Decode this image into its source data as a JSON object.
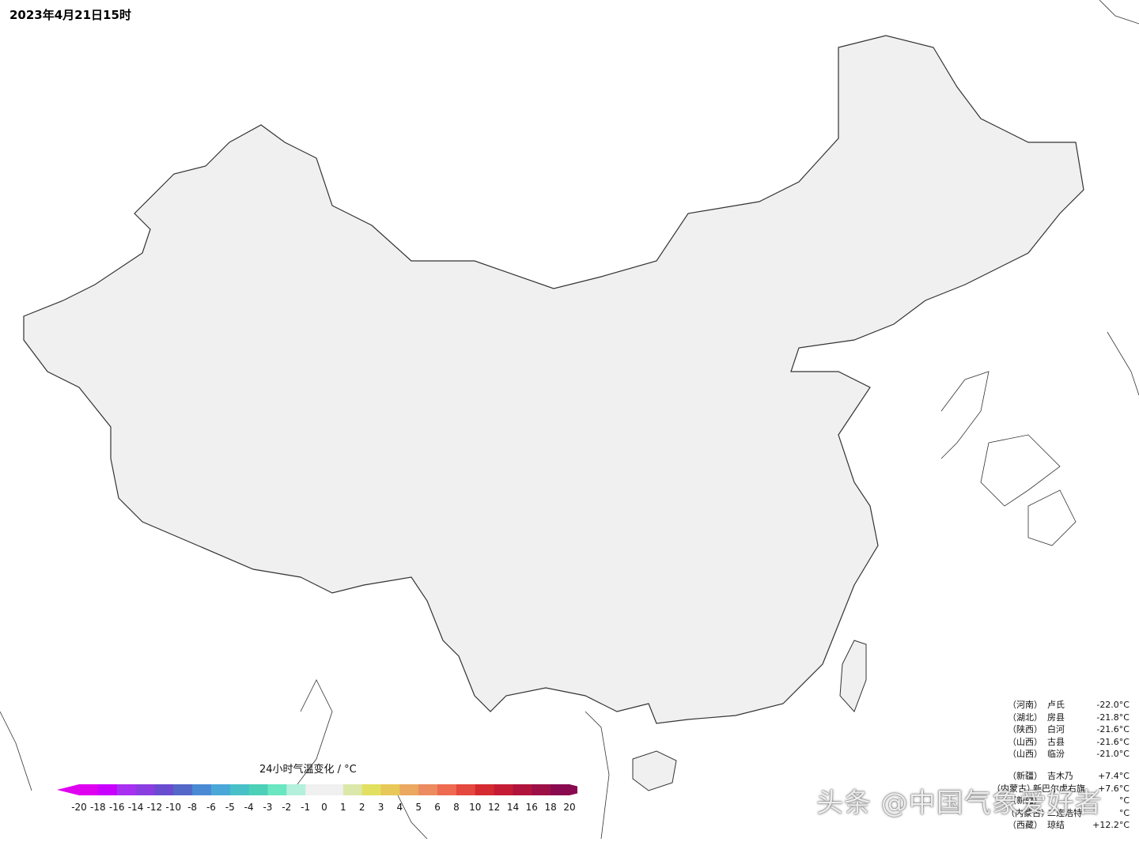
{
  "header": {
    "timestamp": "2023年4月21日15时"
  },
  "legend": {
    "title": "24小时气温变化 / °C",
    "ticks": [
      "-20",
      "-18",
      "-16",
      "-14",
      "-12",
      "-10",
      "-8",
      "-6",
      "-5",
      "-4",
      "-3",
      "-2",
      "-1",
      "0",
      "1",
      "2",
      "3",
      "4",
      "5",
      "6",
      "8",
      "10",
      "12",
      "14",
      "16",
      "18",
      "20"
    ],
    "colors": [
      "#e000f0",
      "#c800ff",
      "#a830f0",
      "#8a3ee0",
      "#6a4cd0",
      "#5468c8",
      "#4a8ad4",
      "#4aa8d8",
      "#48c0c8",
      "#4cd0b8",
      "#6ae6c0",
      "#b4f0dc",
      "#f0f0f0",
      "#f0f0f0",
      "#dce8aa",
      "#e2e060",
      "#e8c858",
      "#eaa860",
      "#ec8a60",
      "#ee6a50",
      "#e4483e",
      "#d42a30",
      "#c41c34",
      "#b0143c",
      "#9c1046",
      "#8a0a50"
    ]
  },
  "stats_cooling": [
    {
      "province": "（河南）",
      "station": "卢氏",
      "value": "-22.0°C"
    },
    {
      "province": "（湖北）",
      "station": "房县",
      "value": "-21.8°C"
    },
    {
      "province": "（陕西）",
      "station": "白河",
      "value": "-21.6°C"
    },
    {
      "province": "（山西）",
      "station": "古县",
      "value": "-21.6°C"
    },
    {
      "province": "（山西）",
      "station": "临汾",
      "value": "-21.0°C"
    }
  ],
  "stats_warming": [
    {
      "province": "（新疆）",
      "station": "吉木乃",
      "value": "+7.4°C"
    },
    {
      "province": "（内蒙古）",
      "station": "新巴尔虎右旗",
      "value": "+7.6°C"
    },
    {
      "province": "（新疆）",
      "station": "",
      "value": "°C"
    },
    {
      "province": "（内蒙古）",
      "station": "二连浩特",
      "value": "°C"
    },
    {
      "province": "（西藏）",
      "station": "琼结",
      "value": "+12.2°C"
    }
  ],
  "watermark": "头条 @中国气象爱好者",
  "map_fills": {
    "land": "#f0f0f0",
    "strong_cooling": "#c800ff",
    "moderate_cooling": "#5468c8",
    "slight_cooling": "#6ae6c0",
    "slight_warming": "#e2e060",
    "strong_warming": "#e4483e"
  }
}
